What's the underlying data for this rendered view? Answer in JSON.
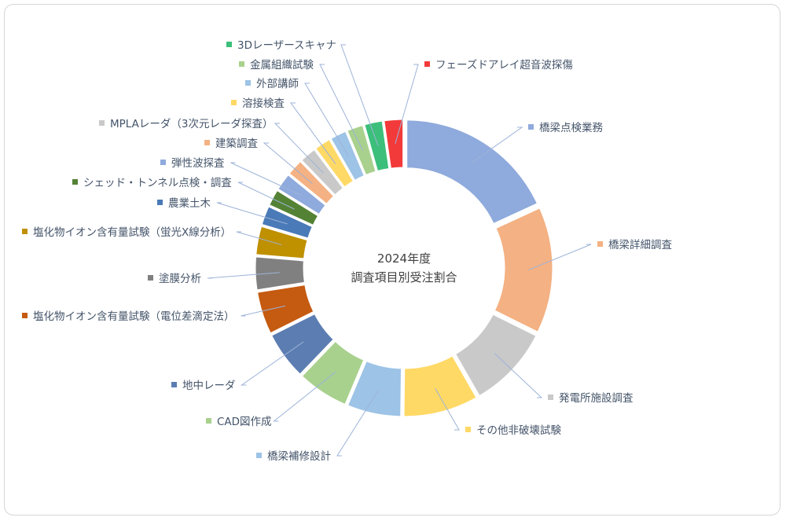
{
  "chart_data": {
    "type": "pie",
    "variant": "doughnut",
    "title": "2024年度",
    "subtitle": "調査項目別受注割合",
    "legend": "callout-labels",
    "slices": [
      {
        "name": "橋梁点検業務",
        "value": 18.6,
        "color": "#8faadc"
      },
      {
        "name": "橋梁詳細調査",
        "value": 14.6,
        "color": "#f4b183"
      },
      {
        "name": "発電所施設調査",
        "value": 9.6,
        "color": "#c9c9c9"
      },
      {
        "name": "その他非破壊試験",
        "value": 8.7,
        "color": "#ffd966"
      },
      {
        "name": "橋梁補修設計",
        "value": 6.3,
        "color": "#9dc3e6"
      },
      {
        "name": "CAD図作成",
        "value": 6.0,
        "color": "#a9d18e"
      },
      {
        "name": "地中レーダ",
        "value": 5.6,
        "color": "#5b7db1"
      },
      {
        "name": "塩化物イオン含有量試験（電位差滴定法）",
        "value": 5.0,
        "color": "#c55a11"
      },
      {
        "name": "塗膜分析",
        "value": 3.9,
        "color": "#808080"
      },
      {
        "name": "塩化物イオン含有量試験（蛍光X線分析）",
        "value": 3.4,
        "color": "#bf9000"
      },
      {
        "name": "農業土木",
        "value": 2.3,
        "color": "#4a7ab7"
      },
      {
        "name": "シェッド・トンネル点検・調査",
        "value": 2.0,
        "color": "#548235"
      },
      {
        "name": "弾性波探査",
        "value": 2.1,
        "color": "#8faadc"
      },
      {
        "name": "建築調査",
        "value": 2.0,
        "color": "#f4b183"
      },
      {
        "name": "MPLAレーダ（3次元レーダ探査）",
        "value": 2.0,
        "color": "#c9c9c9"
      },
      {
        "name": "溶接検査",
        "value": 2.0,
        "color": "#ffd966"
      },
      {
        "name": "外部講師",
        "value": 2.0,
        "color": "#9dc3e6"
      },
      {
        "name": "金属組織試験",
        "value": 2.0,
        "color": "#a9d18e"
      },
      {
        "name": "3Dレーザースキャナ",
        "value": 2.2,
        "color": "#3cbf7a"
      },
      {
        "name": "フェーズドアレイ超音波探傷",
        "value": 2.3,
        "color": "#f23a3a"
      }
    ]
  }
}
